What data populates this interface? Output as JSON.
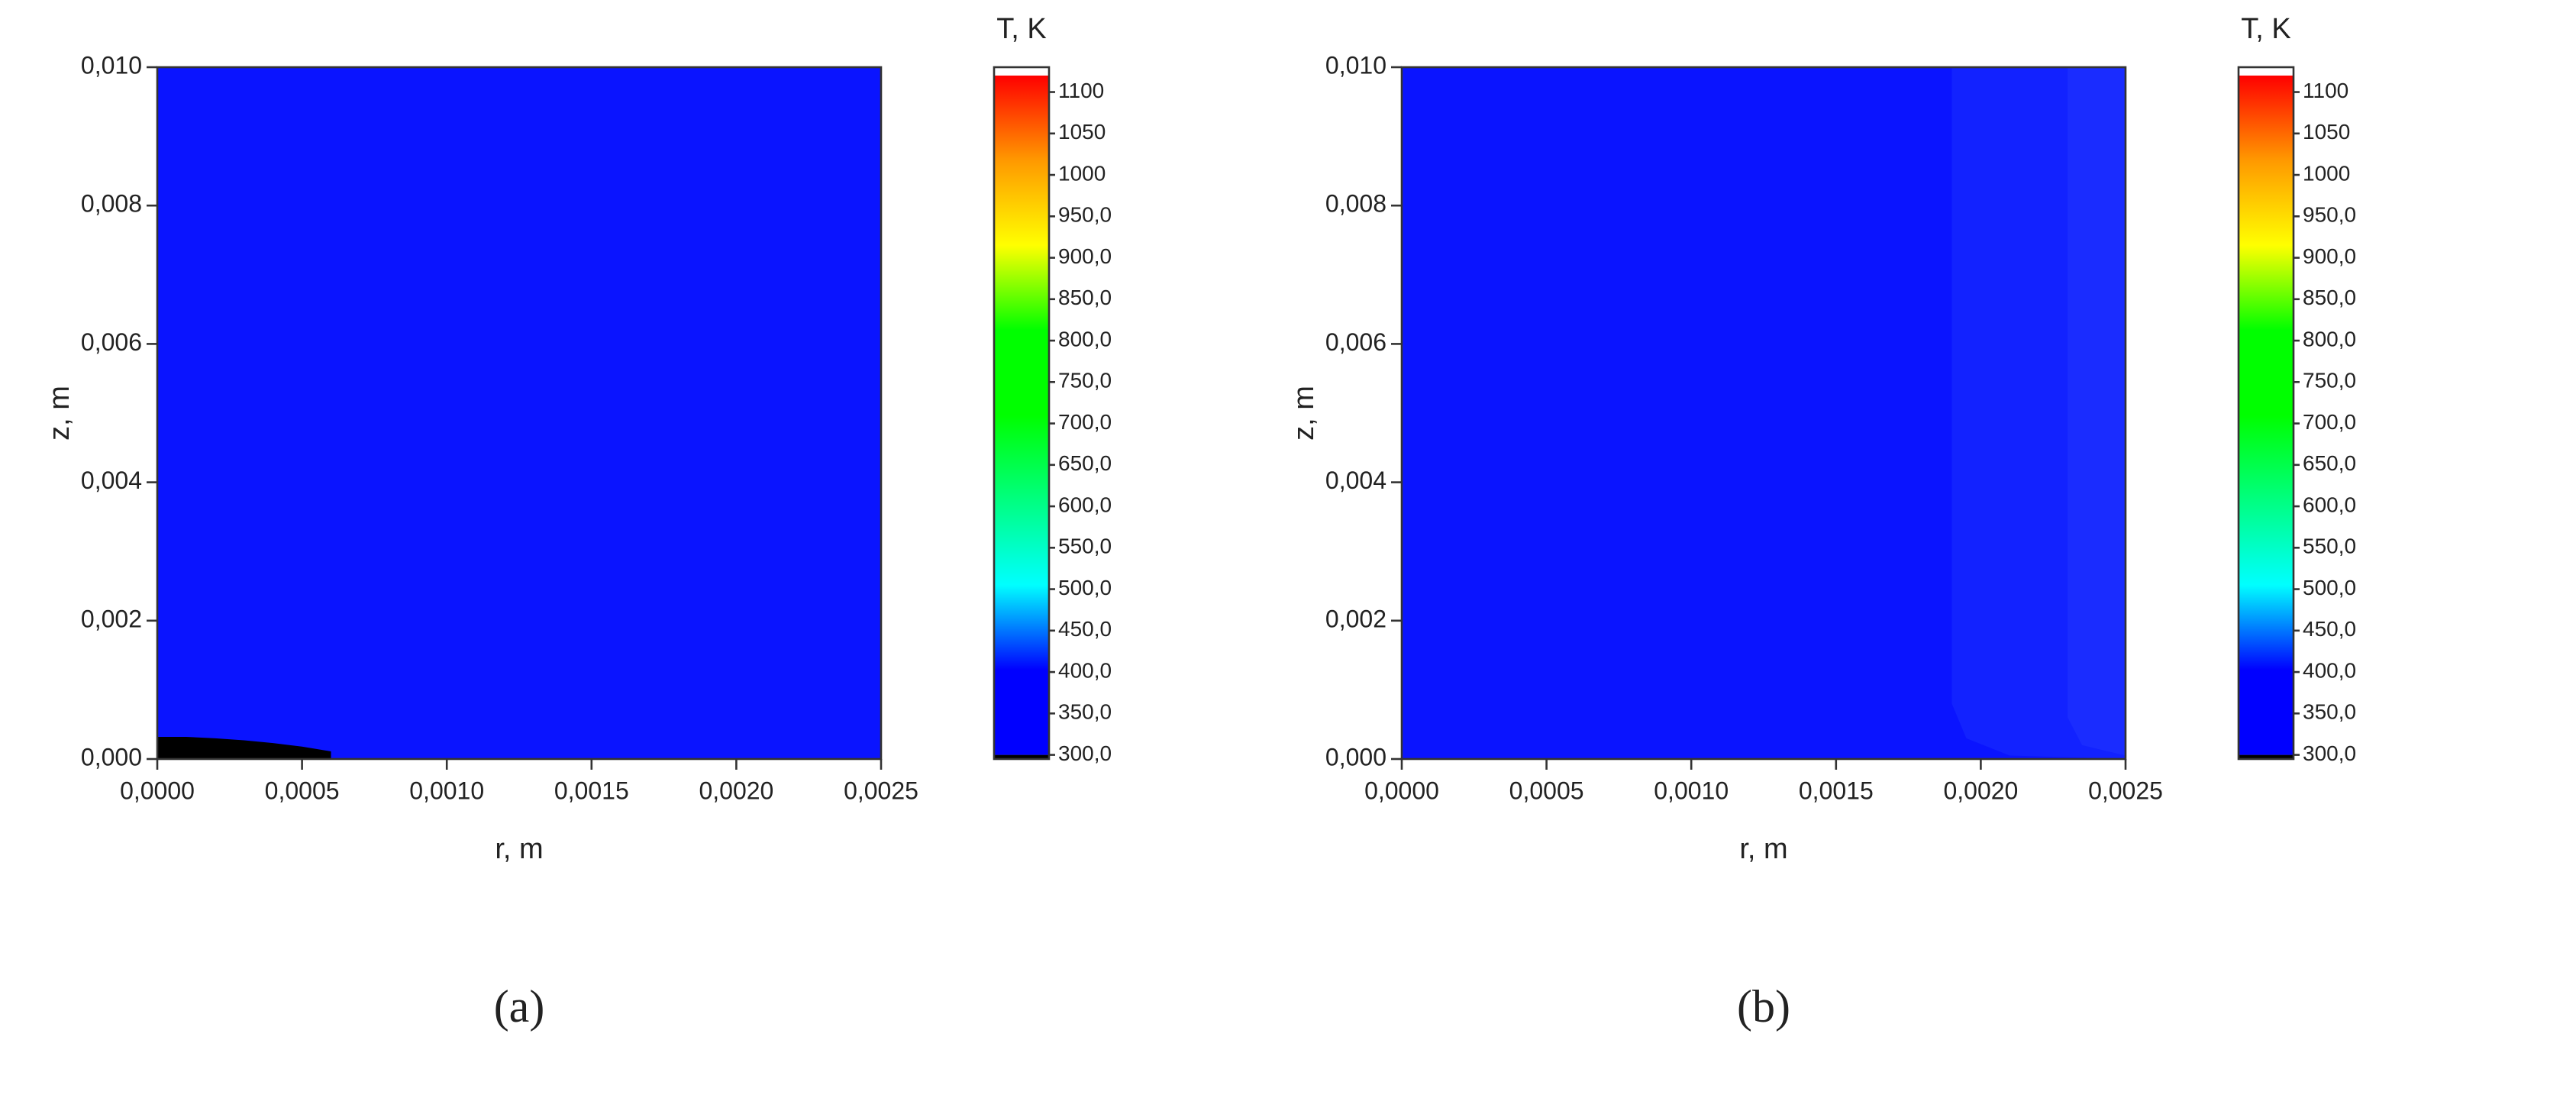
{
  "chart_data": [
    {
      "type": "contour",
      "x_label": "r, m",
      "y_label": "z, m",
      "caption": "(a)",
      "xlim": [
        0,
        0.0025
      ],
      "ylim": [
        0,
        0.01
      ],
      "xticks": [
        {
          "value": 0,
          "label": "0,0000"
        },
        {
          "value": 0.0005,
          "label": "0,0005"
        },
        {
          "value": 0.001,
          "label": "0,0010"
        },
        {
          "value": 0.0015,
          "label": "0,0015"
        },
        {
          "value": 0.002,
          "label": "0,0020"
        },
        {
          "value": 0.0025,
          "label": "0,0025"
        }
      ],
      "yticks": [
        {
          "value": 0,
          "label": "0,000"
        },
        {
          "value": 0.002,
          "label": "0,002"
        },
        {
          "value": 0.004,
          "label": "0,004"
        },
        {
          "value": 0.006,
          "label": "0,006"
        },
        {
          "value": 0.008,
          "label": "0,008"
        },
        {
          "value": 0.01,
          "label": "0,010"
        }
      ],
      "background": "#0a14ff",
      "regions": [
        {
          "color": "#000000",
          "x": [
            0,
            0,
            0.0001,
            0.0002,
            0.0003,
            0.0004,
            0.0005,
            0.0006,
            0.0006
          ],
          "y": [
            0,
            0.00032,
            0.00032,
            0.0003,
            0.00027,
            0.00023,
            0.00018,
            0.00011,
            0
          ]
        }
      ],
      "colorbar": {
        "title": "T, K",
        "clim": [
          295,
          1130
        ],
        "range": [
          300,
          1120
        ],
        "under": "#000000",
        "over": "#ffffff",
        "colors": [
          "#0000ff",
          "#0000ff",
          "#00ffff",
          "#00ff80",
          "#00ff00",
          "#00ff00",
          "#ffff00",
          "#ff9900",
          "#ff0000"
        ],
        "ticks": [
          {
            "value": 300,
            "label": "300,0"
          },
          {
            "value": 350,
            "label": "350,0"
          },
          {
            "value": 400,
            "label": "400,0"
          },
          {
            "value": 450,
            "label": "450,0"
          },
          {
            "value": 500,
            "label": "500,0"
          },
          {
            "value": 550,
            "label": "550,0"
          },
          {
            "value": 600,
            "label": "600,0"
          },
          {
            "value": 650,
            "label": "650,0"
          },
          {
            "value": 700,
            "label": "700,0"
          },
          {
            "value": 750,
            "label": "750,0"
          },
          {
            "value": 800,
            "label": "800,0"
          },
          {
            "value": 850,
            "label": "850,0"
          },
          {
            "value": 900,
            "label": "900,0"
          },
          {
            "value": 950,
            "label": "950,0"
          },
          1000,
          1050,
          1100
        ]
      }
    },
    {
      "type": "contour",
      "x_label": "r, m",
      "y_label": "z, m",
      "caption": "(b)",
      "xlim": [
        0,
        0.0025
      ],
      "ylim": [
        0,
        0.01
      ],
      "xticks": [
        {
          "value": 0,
          "label": "0,0000"
        },
        {
          "value": 0.0005,
          "label": "0,0005"
        },
        {
          "value": 0.001,
          "label": "0,0010"
        },
        {
          "value": 0.0015,
          "label": "0,0015"
        },
        {
          "value": 0.002,
          "label": "0,0020"
        },
        {
          "value": 0.0025,
          "label": "0,0025"
        }
      ],
      "yticks": [
        {
          "value": 0,
          "label": "0,000"
        },
        {
          "value": 0.002,
          "label": "0,002"
        },
        {
          "value": 0.004,
          "label": "0,004"
        },
        {
          "value": 0.006,
          "label": "0,006"
        },
        {
          "value": 0.008,
          "label": "0,008"
        },
        {
          "value": 0.01,
          "label": "0,010"
        }
      ],
      "background": "#0a14ff",
      "regions": [
        {
          "color": "#1222ff",
          "x": [
            0.0019,
            0.0019,
            0.00195,
            0.0021,
            0.0025,
            0.0025
          ],
          "y": [
            0.01,
            0.0008,
            0.0003,
            5e-05,
            0,
            0.01
          ]
        },
        {
          "color": "#1a2cff",
          "x": [
            0.0023,
            0.0023,
            0.00235,
            0.0025,
            0.0025
          ],
          "y": [
            0.01,
            0.0006,
            0.0002,
            5e-05,
            0.01
          ]
        }
      ],
      "colorbar": {
        "title": "T, K",
        "clim": [
          295,
          1130
        ],
        "range": [
          300,
          1120
        ],
        "under": "#000000",
        "over": "#ffffff",
        "colors": [
          "#0000ff",
          "#0000ff",
          "#00ffff",
          "#00ff80",
          "#00ff00",
          "#00ff00",
          "#ffff00",
          "#ff9900",
          "#ff0000"
        ],
        "ticks": [
          {
            "value": 300,
            "label": "300,0"
          },
          {
            "value": 350,
            "label": "350,0"
          },
          {
            "value": 400,
            "label": "400,0"
          },
          {
            "value": 450,
            "label": "450,0"
          },
          {
            "value": 500,
            "label": "500,0"
          },
          {
            "value": 550,
            "label": "550,0"
          },
          {
            "value": 600,
            "label": "600,0"
          },
          {
            "value": 650,
            "label": "650,0"
          },
          {
            "value": 700,
            "label": "700,0"
          },
          {
            "value": 750,
            "label": "750,0"
          },
          {
            "value": 800,
            "label": "800,0"
          },
          {
            "value": 850,
            "label": "850,0"
          },
          {
            "value": 900,
            "label": "900,0"
          },
          {
            "value": 950,
            "label": "950,0"
          },
          1000,
          1050,
          1100
        ]
      }
    }
  ]
}
